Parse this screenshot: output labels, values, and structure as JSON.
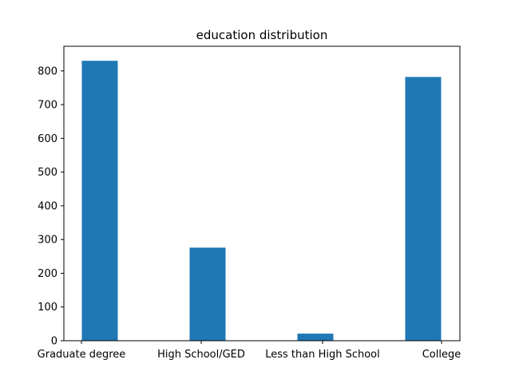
{
  "chart_data": {
    "type": "bar",
    "title": "education distribution",
    "categories": [
      "Graduate degree",
      "High School/GED",
      "Less than High School",
      "College"
    ],
    "values": [
      830,
      276,
      21,
      782
    ],
    "ylim": [
      0,
      873
    ],
    "yticks": [
      0,
      100,
      200,
      300,
      400,
      500,
      600,
      700,
      800
    ],
    "xlabel": "",
    "ylabel": "",
    "grid": false,
    "bar_color": "#1f77b4"
  }
}
